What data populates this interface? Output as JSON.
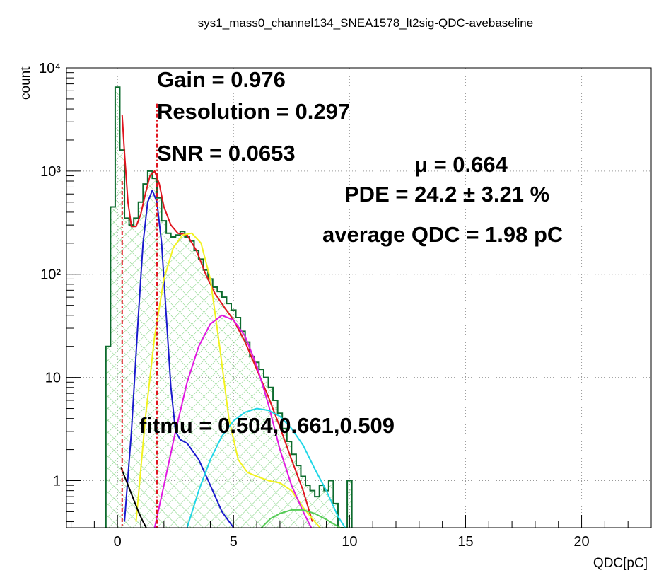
{
  "chart_data": {
    "type": "histogram",
    "title": "sys1_mass0_channel134_SNEA1578_lt2sig-QDC-avebaseline",
    "xlabel": "QDC[pC]",
    "ylabel": "count",
    "xlim": [
      -2.2,
      23
    ],
    "ylim": [
      0.35,
      10000
    ],
    "yscale": "log",
    "grid": true,
    "x_ticks": [
      0,
      5,
      10,
      15,
      20
    ],
    "x_tick_labels": [
      "0",
      "5",
      "10",
      "15",
      "20"
    ],
    "y_ticks": [
      1,
      10,
      100,
      1000,
      10000
    ],
    "y_tick_labels": [
      "1",
      "10",
      "10²",
      "10³",
      "10⁴"
    ],
    "annotations": {
      "gain": "Gain = 0.976",
      "resolution": "Resolution = 0.297",
      "snr": "SNR = 0.0653",
      "mu": "μ = 0.664",
      "pde": "PDE =  24.2 ±  3.21 %",
      "avg_qdc": "average QDC =  1.98 pC",
      "fitmu": "fitmu = 0.504,0.661,0.509"
    },
    "histogram": {
      "bin_width": 0.2,
      "x": [
        -0.4,
        -0.2,
        0.0,
        0.2,
        0.4,
        0.6,
        0.8,
        1.0,
        1.2,
        1.4,
        1.6,
        1.8,
        2.0,
        2.2,
        2.4,
        2.6,
        2.8,
        3.0,
        3.2,
        3.4,
        3.6,
        3.8,
        4.0,
        4.2,
        4.4,
        4.6,
        4.8,
        5.0,
        5.2,
        5.4,
        5.6,
        5.8,
        6.0,
        6.2,
        6.4,
        6.6,
        6.8,
        7.0,
        7.2,
        7.4,
        7.6,
        7.8,
        8.0,
        8.2,
        8.4,
        8.6,
        8.8,
        9.0,
        9.2,
        9.4,
        9.6,
        9.8,
        10.0
      ],
      "counts": [
        20,
        450,
        6500,
        1600,
        350,
        300,
        350,
        500,
        750,
        1000,
        850,
        550,
        330,
        250,
        230,
        240,
        260,
        230,
        210,
        170,
        140,
        110,
        90,
        75,
        68,
        60,
        52,
        45,
        38,
        28,
        22,
        16,
        14,
        12,
        10,
        8,
        6,
        4.5,
        3.2,
        2.4,
        1.8,
        1.4,
        1.1,
        0.9,
        0.8,
        0.7,
        0.9,
        0.8,
        1,
        0.6,
        0.35,
        0.35,
        1
      ]
    },
    "series": [
      {
        "name": "total fit",
        "color": "#e0141e",
        "x": [
          0.2,
          0.3,
          0.45,
          0.6,
          0.8,
          1.0,
          1.2,
          1.4,
          1.6,
          1.8,
          2.0,
          2.3,
          2.6,
          3.0,
          3.4,
          3.8,
          4.2,
          4.6,
          5.0,
          5.5,
          6.0,
          6.5,
          7.0,
          7.5,
          8.0,
          8.4
        ],
        "y": [
          3500,
          1500,
          500,
          290,
          290,
          380,
          600,
          900,
          1000,
          750,
          450,
          300,
          250,
          240,
          170,
          100,
          65,
          48,
          36,
          22,
          12,
          6.5,
          3.3,
          1.6,
          0.8,
          0.4
        ]
      },
      {
        "name": "1 p.e.",
        "color": "#1a1acd",
        "x": [
          0.3,
          0.6,
          0.9,
          1.1,
          1.3,
          1.5,
          1.7,
          1.9,
          2.1,
          2.3,
          2.5,
          2.7,
          3.0,
          3.5,
          4.0,
          4.5,
          5.0,
          5.3
        ],
        "y": [
          0.4,
          3,
          40,
          200,
          500,
          650,
          500,
          200,
          40,
          8,
          3,
          2.5,
          2.3,
          1.6,
          0.9,
          0.5,
          0.35,
          0.3
        ]
      },
      {
        "name": "2 p.e.",
        "color": "#f2f220",
        "x": [
          0.8,
          1.2,
          1.6,
          2.0,
          2.4,
          2.8,
          3.2,
          3.6,
          4.0,
          4.4,
          4.8,
          5.2,
          5.6,
          6.0,
          6.5,
          7.0,
          7.5,
          8.0,
          8.5,
          9.0
        ],
        "y": [
          0.4,
          4,
          25,
          90,
          180,
          240,
          250,
          200,
          90,
          20,
          4,
          1.6,
          1.2,
          1.1,
          1.0,
          0.95,
          0.8,
          0.55,
          0.4,
          0.3
        ]
      },
      {
        "name": "3 p.e.",
        "color": "#e019e0",
        "x": [
          1.6,
          2.0,
          2.5,
          3.0,
          3.5,
          4.0,
          4.5,
          5.0,
          5.5,
          6.0,
          6.5,
          7.0,
          7.5,
          8.0,
          8.5
        ],
        "y": [
          0.35,
          0.9,
          3,
          9,
          20,
          33,
          40,
          36,
          25,
          13,
          5.5,
          2,
          0.9,
          0.5,
          0.3
        ]
      },
      {
        "name": "4 p.e.",
        "color": "#20d6e6",
        "x": [
          3.0,
          3.5,
          4.0,
          4.5,
          5.0,
          5.5,
          6.0,
          6.5,
          7.0,
          7.5,
          8.0,
          8.5,
          9.0,
          9.5,
          10.0
        ],
        "y": [
          0.35,
          0.8,
          1.6,
          2.7,
          3.8,
          4.6,
          5.0,
          4.8,
          4.2,
          3.2,
          2.2,
          1.3,
          0.8,
          0.45,
          0.3
        ]
      },
      {
        "name": "5 p.e.",
        "color": "#55cc55",
        "x": [
          6.2,
          6.6,
          7.0,
          7.5,
          8.0,
          8.5,
          9.0,
          9.5,
          9.8
        ],
        "y": [
          0.35,
          0.43,
          0.48,
          0.52,
          0.52,
          0.48,
          0.42,
          0.36,
          0.33
        ]
      },
      {
        "name": "pedestal",
        "color": "#000000",
        "x": [
          0.15,
          0.3,
          0.5,
          0.7,
          0.9,
          1.1,
          1.3
        ],
        "y": [
          1.35,
          1.1,
          0.85,
          0.65,
          0.5,
          0.4,
          0.33
        ]
      }
    ],
    "markers": {
      "color": "#e0141e",
      "x": [
        0.2,
        1.7
      ]
    }
  }
}
